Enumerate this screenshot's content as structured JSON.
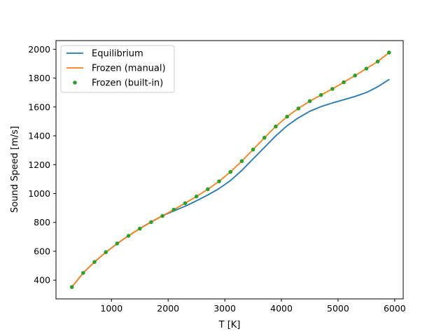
{
  "chart_data": {
    "type": "line",
    "title": "",
    "xlabel": "T [K]",
    "ylabel": "Sound Speed [m/s]",
    "xlim": [
      20,
      6150
    ],
    "ylim": [
      270,
      2060
    ],
    "xticks": [
      1000,
      2000,
      3000,
      4000,
      5000,
      6000
    ],
    "yticks": [
      400,
      600,
      800,
      1000,
      1200,
      1400,
      1600,
      1800,
      2000
    ],
    "grid": false,
    "legend_position": "upper-left",
    "series": [
      {
        "name": "Equilibrium",
        "style": "line",
        "color": "#1f77b4",
        "x": [
          300,
          500,
          700,
          900,
          1100,
          1300,
          1500,
          1700,
          1900,
          2100,
          2300,
          2500,
          2700,
          2900,
          3100,
          3300,
          3500,
          3700,
          3900,
          4100,
          4300,
          4500,
          4700,
          4900,
          5100,
          5300,
          5500,
          5700,
          5900
        ],
        "y": [
          352,
          450,
          526,
          593,
          653,
          708,
          758,
          804,
          846,
          880,
          912,
          950,
          990,
          1035,
          1090,
          1160,
          1240,
          1320,
          1400,
          1470,
          1525,
          1570,
          1603,
          1628,
          1650,
          1673,
          1700,
          1740,
          1790
        ]
      },
      {
        "name": "Frozen (manual)",
        "style": "line",
        "color": "#ff7f0e",
        "x": [
          300,
          500,
          700,
          900,
          1100,
          1300,
          1500,
          1700,
          1900,
          2100,
          2300,
          2500,
          2700,
          2900,
          3100,
          3300,
          3500,
          3700,
          3900,
          4100,
          4300,
          4500,
          4700,
          4900,
          5100,
          5300,
          5500,
          5700,
          5900
        ],
        "y": [
          352,
          450,
          526,
          594,
          654,
          707,
          757,
          802,
          845,
          888,
          933,
          980,
          1030,
          1085,
          1150,
          1225,
          1305,
          1387,
          1465,
          1533,
          1590,
          1640,
          1683,
          1725,
          1771,
          1818,
          1866,
          1915,
          1977
        ]
      },
      {
        "name": "Frozen (built-in)",
        "style": "markers",
        "color": "#2ca02c",
        "x": [
          300,
          500,
          700,
          900,
          1100,
          1300,
          1500,
          1700,
          1900,
          2100,
          2300,
          2500,
          2700,
          2900,
          3100,
          3300,
          3500,
          3700,
          3900,
          4100,
          4300,
          4500,
          4700,
          4900,
          5100,
          5300,
          5500,
          5700,
          5900
        ],
        "y": [
          352,
          450,
          526,
          594,
          654,
          707,
          757,
          802,
          845,
          888,
          933,
          980,
          1030,
          1085,
          1150,
          1225,
          1305,
          1387,
          1465,
          1533,
          1590,
          1640,
          1683,
          1725,
          1771,
          1818,
          1866,
          1915,
          1977
        ]
      }
    ]
  }
}
